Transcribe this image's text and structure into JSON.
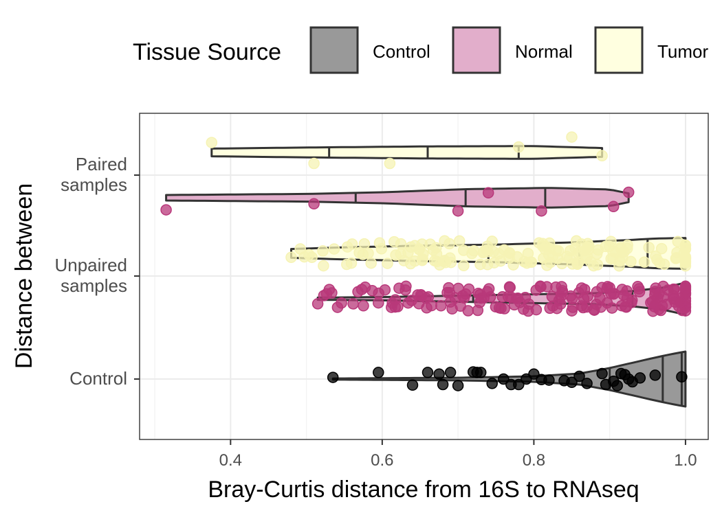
{
  "chart_data": {
    "type": "violin-jitter",
    "orientation": "horizontal",
    "xlabel": "Bray-Curtis distance from 16S to RNAseq",
    "ylabel": "Distance between",
    "xlim": [
      0.28,
      1.03
    ],
    "xticks": [
      "0.4",
      "0.6",
      "0.8",
      "1.0"
    ],
    "xtick_values": [
      0.4,
      0.6,
      0.8,
      1.0
    ],
    "grid": true,
    "legend": {
      "title": "Tissue Source",
      "placement": "top",
      "entries": [
        {
          "label": "Control",
          "color": "#999999"
        },
        {
          "label": "Normal",
          "color": "#e2aecb"
        },
        {
          "label": "Tumor",
          "color": "#ffffe0"
        }
      ]
    },
    "categories": [
      {
        "label_lines": [
          "Paired",
          "samples"
        ]
      },
      {
        "label_lines": [
          "Unpaired",
          "samples"
        ]
      },
      {
        "label_lines": [
          "Control"
        ]
      }
    ],
    "series": [
      {
        "category_index": 0,
        "offset": -1,
        "source": "Tumor",
        "fill": "#ffffe0",
        "point_color": "#f6f3b4",
        "violin": {
          "min": 0.375,
          "max": 0.89,
          "q1": 0.53,
          "median": 0.66,
          "q3": 0.78,
          "profile": [
            [
              0.375,
              0.35
            ],
            [
              0.5,
              0.45
            ],
            [
              0.66,
              0.55
            ],
            [
              0.8,
              0.58
            ],
            [
              0.89,
              0.4
            ]
          ]
        },
        "points": [
          [
            0.375,
            -0.9
          ],
          [
            0.51,
            1.0
          ],
          [
            0.61,
            1.0
          ],
          [
            0.78,
            -0.5
          ],
          [
            0.85,
            -1.4
          ],
          [
            0.89,
            0.3
          ]
        ]
      },
      {
        "category_index": 0,
        "offset": 1,
        "source": "Normal",
        "fill": "#e2aecb",
        "point_color": "#b8387a",
        "violin": {
          "min": 0.315,
          "max": 0.925,
          "q1": 0.565,
          "median": 0.71,
          "q3": 0.815,
          "profile": [
            [
              0.315,
              0.25
            ],
            [
              0.5,
              0.35
            ],
            [
              0.6,
              0.5
            ],
            [
              0.71,
              0.78
            ],
            [
              0.82,
              0.9
            ],
            [
              0.9,
              0.75
            ],
            [
              0.925,
              0.4
            ]
          ]
        },
        "points": [
          [
            0.315,
            1.1
          ],
          [
            0.51,
            0.55
          ],
          [
            0.7,
            1.2
          ],
          [
            0.74,
            -0.45
          ],
          [
            0.81,
            1.2
          ],
          [
            0.905,
            0.8
          ],
          [
            0.925,
            -0.5
          ]
        ]
      },
      {
        "category_index": 1,
        "offset": -1,
        "source": "Tumor",
        "fill": "#ffffe0",
        "point_color": "#f6f3b4",
        "n_points": 160,
        "point_range": [
          0.48,
          1.0
        ],
        "violin": {
          "min": 0.48,
          "max": 1.0,
          "q1": 0.74,
          "median": 0.86,
          "q3": 0.95,
          "profile": [
            [
              0.48,
              0.4
            ],
            [
              0.55,
              0.55
            ],
            [
              0.65,
              0.7
            ],
            [
              0.75,
              0.8
            ],
            [
              0.85,
              1.0
            ],
            [
              0.92,
              1.2
            ],
            [
              0.96,
              1.35
            ],
            [
              1.0,
              1.4
            ]
          ]
        }
      },
      {
        "category_index": 1,
        "offset": 1,
        "source": "Normal",
        "fill": "#e2aecb",
        "point_color": "#b8387a",
        "n_points": 170,
        "point_range": [
          0.515,
          1.0
        ],
        "violin": {
          "min": 0.515,
          "max": 1.0,
          "q1": 0.72,
          "median": 0.83,
          "q3": 0.93,
          "profile": [
            [
              0.515,
              0.1
            ],
            [
              0.6,
              0.15
            ],
            [
              0.7,
              0.28
            ],
            [
              0.8,
              0.4
            ],
            [
              0.88,
              0.5
            ],
            [
              0.93,
              0.7
            ],
            [
              0.97,
              1.0
            ],
            [
              1.0,
              1.45
            ]
          ]
        }
      },
      {
        "category_index": 2,
        "offset": 0,
        "source": "Control",
        "fill": "#999999",
        "point_color": "#000000",
        "violin": {
          "min": 0.535,
          "max": 1.0,
          "q1": 0.9,
          "median": 0.97,
          "q3": 0.995,
          "profile": [
            [
              0.535,
              0.05
            ],
            [
              0.6,
              0.08
            ],
            [
              0.7,
              0.12
            ],
            [
              0.8,
              0.25
            ],
            [
              0.86,
              0.5
            ],
            [
              0.9,
              1.0
            ],
            [
              0.95,
              1.8
            ],
            [
              0.98,
              2.25
            ],
            [
              1.0,
              2.5
            ]
          ]
        },
        "points": [
          [
            0.535,
            -0.15
          ],
          [
            0.595,
            -0.6
          ],
          [
            0.64,
            0.55
          ],
          [
            0.66,
            -0.6
          ],
          [
            0.68,
            0.5
          ],
          [
            0.675,
            -0.45
          ],
          [
            0.69,
            -0.6
          ],
          [
            0.7,
            0.6
          ],
          [
            0.72,
            -0.65
          ],
          [
            0.725,
            -0.6
          ],
          [
            0.73,
            -0.6
          ],
          [
            0.745,
            0.4
          ],
          [
            0.76,
            0.0
          ],
          [
            0.77,
            0.5
          ],
          [
            0.78,
            0.5
          ],
          [
            0.79,
            0.0
          ],
          [
            0.8,
            -0.45
          ],
          [
            0.81,
            0.05
          ],
          [
            0.82,
            0.1
          ],
          [
            0.84,
            0.15
          ],
          [
            0.85,
            0.3
          ],
          [
            0.86,
            -0.25
          ],
          [
            0.87,
            0.4
          ],
          [
            0.89,
            -0.5
          ],
          [
            0.895,
            0.5
          ],
          [
            0.905,
            0.2
          ],
          [
            0.91,
            0.6
          ],
          [
            0.915,
            -0.5
          ],
          [
            0.92,
            -0.4
          ],
          [
            0.925,
            0.0
          ],
          [
            0.93,
            0.25
          ],
          [
            0.94,
            -0.1
          ],
          [
            0.96,
            -0.35
          ],
          [
            0.995,
            -0.2
          ]
        ]
      }
    ]
  }
}
